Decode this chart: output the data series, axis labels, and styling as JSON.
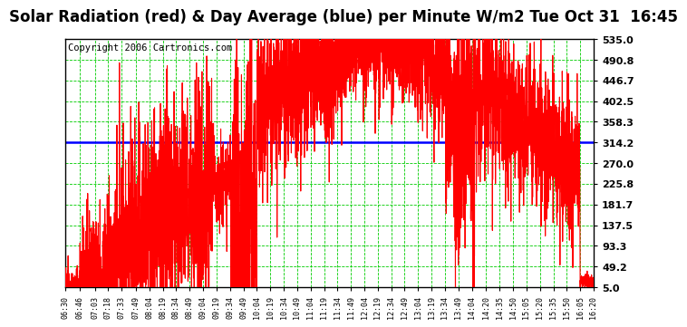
{
  "title": "Solar Radiation (red) & Day Average (blue) per Minute W/m2 Tue Oct 31  16:45",
  "copyright": "Copyright 2006 Cartronics.com",
  "bg_color": "#ffffff",
  "plot_bg": "#ffffff",
  "grid_color": "#00cc00",
  "line_color": "#ff0000",
  "avg_color": "#0000ff",
  "avg_value": 314.2,
  "yticks": [
    5.0,
    49.2,
    93.3,
    137.5,
    181.7,
    225.8,
    270.0,
    314.2,
    358.3,
    402.5,
    446.7,
    490.8,
    535.0
  ],
  "ymin": 5.0,
  "ymax": 535.0,
  "xtick_labels": [
    "06:30",
    "06:46",
    "07:03",
    "07:18",
    "07:33",
    "07:49",
    "08:04",
    "08:19",
    "08:34",
    "08:49",
    "09:04",
    "09:19",
    "09:34",
    "09:49",
    "10:04",
    "10:19",
    "10:34",
    "10:49",
    "11:04",
    "11:19",
    "11:34",
    "11:49",
    "12:04",
    "12:19",
    "12:34",
    "12:49",
    "13:04",
    "13:19",
    "13:34",
    "13:49",
    "14:04",
    "14:20",
    "14:35",
    "14:50",
    "15:05",
    "15:20",
    "15:35",
    "15:50",
    "16:05",
    "16:20"
  ],
  "title_fontsize": 12,
  "copyright_fontsize": 7.5
}
